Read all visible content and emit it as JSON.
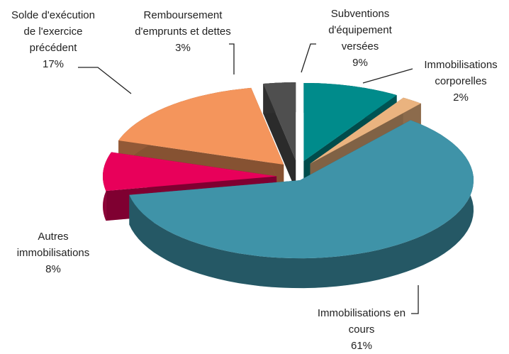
{
  "chart_data": {
    "type": "pie3d",
    "categories": [
      "Subventions d'équipement versées",
      "Immobilisations corporelles",
      "Immobilisations en cours",
      "Autres immobilisations",
      "Solde d'exécution de l'exercice précédent",
      "Remboursement d'emprunts et dettes"
    ],
    "values": [
      9,
      2,
      61,
      8,
      17,
      3
    ],
    "value_labels": [
      "9%",
      "2%",
      "61%",
      "8%",
      "17%",
      "3%"
    ],
    "colors": [
      "#008b8b",
      "#eab37f",
      "#3f93a8",
      "#e8005a",
      "#f4955c",
      "#4f4f4f"
    ]
  }
}
